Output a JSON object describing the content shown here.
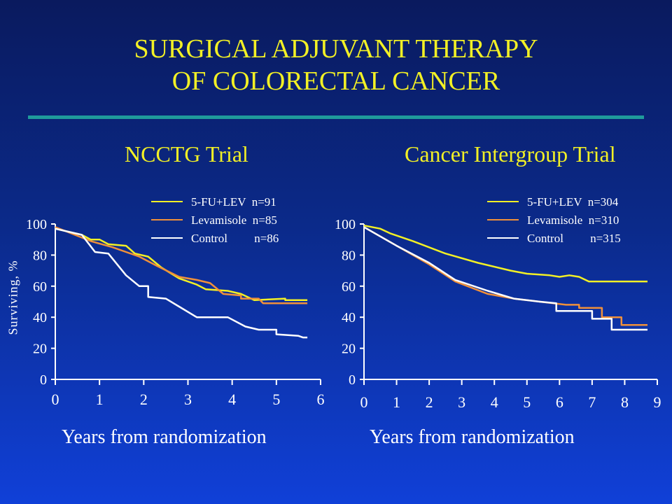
{
  "title": {
    "line1": "SURGICAL ADJUVANT THERAPY",
    "line2": "OF COLORECTAL CANCER"
  },
  "chart_data": [
    {
      "type": "line",
      "subtitle": "NCCTG Trial",
      "xlabel": "Years from randomization",
      "ylabel": "Surviving, %",
      "xlim": [
        0,
        6
      ],
      "ylim": [
        0,
        100
      ],
      "xticks": [
        0,
        1,
        2,
        3,
        4,
        5,
        6
      ],
      "yticks": [
        0,
        20,
        40,
        60,
        80,
        100
      ],
      "legend": "top-right",
      "grid": false,
      "series": [
        {
          "name": "5-FU+LEV  n=91",
          "color": "#f2f025",
          "points": [
            [
              0,
              97
            ],
            [
              0.6,
              93
            ],
            [
              0.8,
              90
            ],
            [
              1.0,
              90
            ],
            [
              1.2,
              87
            ],
            [
              1.6,
              86
            ],
            [
              1.8,
              81
            ],
            [
              2.1,
              79
            ],
            [
              2.4,
              72
            ],
            [
              2.8,
              65
            ],
            [
              3.2,
              61
            ],
            [
              3.4,
              58
            ],
            [
              3.9,
              57
            ],
            [
              4.2,
              55
            ],
            [
              4.5,
              51
            ],
            [
              5.2,
              52
            ],
            [
              5.2,
              51
            ],
            [
              5.7,
              51
            ]
          ]
        },
        {
          "name": "Levamisole  n=85",
          "color": "#f0903a",
          "points": [
            [
              0,
              98
            ],
            [
              0.8,
              89
            ],
            [
              1.3,
              85
            ],
            [
              1.6,
              82
            ],
            [
              1.9,
              79
            ],
            [
              2.3,
              73
            ],
            [
              2.8,
              66
            ],
            [
              3.2,
              64
            ],
            [
              3.5,
              62
            ],
            [
              3.8,
              55
            ],
            [
              4.2,
              54
            ],
            [
              4.2,
              52
            ],
            [
              4.6,
              52
            ],
            [
              4.7,
              49
            ],
            [
              5.7,
              49
            ]
          ]
        },
        {
          "name": "Control         n=86",
          "color": "#ffffff",
          "points": [
            [
              0,
              97
            ],
            [
              0.6,
              93
            ],
            [
              0.9,
              82
            ],
            [
              1.2,
              81
            ],
            [
              1.6,
              67
            ],
            [
              1.9,
              60
            ],
            [
              2.1,
              60
            ],
            [
              2.1,
              53
            ],
            [
              2.5,
              52
            ],
            [
              3.2,
              40
            ],
            [
              3.9,
              40
            ],
            [
              4.3,
              34
            ],
            [
              4.6,
              32
            ],
            [
              5.0,
              32
            ],
            [
              5.0,
              29
            ],
            [
              5.5,
              28
            ],
            [
              5.6,
              27
            ],
            [
              5.7,
              27
            ]
          ]
        }
      ]
    },
    {
      "type": "line",
      "subtitle": "Cancer Intergroup Trial",
      "xlabel": "Years from randomization",
      "ylabel": "",
      "xlim": [
        0,
        9
      ],
      "ylim": [
        0,
        100
      ],
      "xticks": [
        0,
        1,
        2,
        3,
        4,
        5,
        6,
        7,
        8,
        9
      ],
      "yticks": [
        0,
        20,
        40,
        60,
        80,
        100
      ],
      "legend": "top-right",
      "grid": false,
      "series": [
        {
          "name": "5-FU+LEV  n=304",
          "color": "#f2f025",
          "points": [
            [
              0,
              99
            ],
            [
              0.5,
              97
            ],
            [
              0.8,
              94
            ],
            [
              1.5,
              89
            ],
            [
              2.5,
              81
            ],
            [
              3.5,
              75
            ],
            [
              4.5,
              70
            ],
            [
              5.0,
              68
            ],
            [
              5.7,
              67
            ],
            [
              6.0,
              66
            ],
            [
              6.3,
              67
            ],
            [
              6.6,
              66
            ],
            [
              6.9,
              63
            ],
            [
              7.5,
              63
            ],
            [
              8.7,
              63
            ]
          ]
        },
        {
          "name": "Levamisole  n=310",
          "color": "#f0903a",
          "points": [
            [
              0,
              98
            ],
            [
              1.0,
              86
            ],
            [
              2.0,
              74
            ],
            [
              2.8,
              63
            ],
            [
              3.8,
              55
            ],
            [
              4.6,
              52
            ],
            [
              5.4,
              50
            ],
            [
              6.2,
              48
            ],
            [
              6.6,
              48
            ],
            [
              6.6,
              46
            ],
            [
              7.3,
              46
            ],
            [
              7.3,
              40
            ],
            [
              7.9,
              40
            ],
            [
              7.9,
              35
            ],
            [
              8.7,
              35
            ]
          ]
        },
        {
          "name": "Control         n=315",
          "color": "#ffffff",
          "points": [
            [
              0,
              98
            ],
            [
              1.0,
              86
            ],
            [
              2.0,
              75
            ],
            [
              2.8,
              64
            ],
            [
              3.8,
              57
            ],
            [
              4.6,
              52
            ],
            [
              5.4,
              50
            ],
            [
              5.9,
              49
            ],
            [
              5.9,
              44
            ],
            [
              7.0,
              44
            ],
            [
              7.0,
              39
            ],
            [
              7.6,
              39
            ],
            [
              7.6,
              32
            ],
            [
              8.7,
              32
            ]
          ]
        }
      ]
    }
  ]
}
